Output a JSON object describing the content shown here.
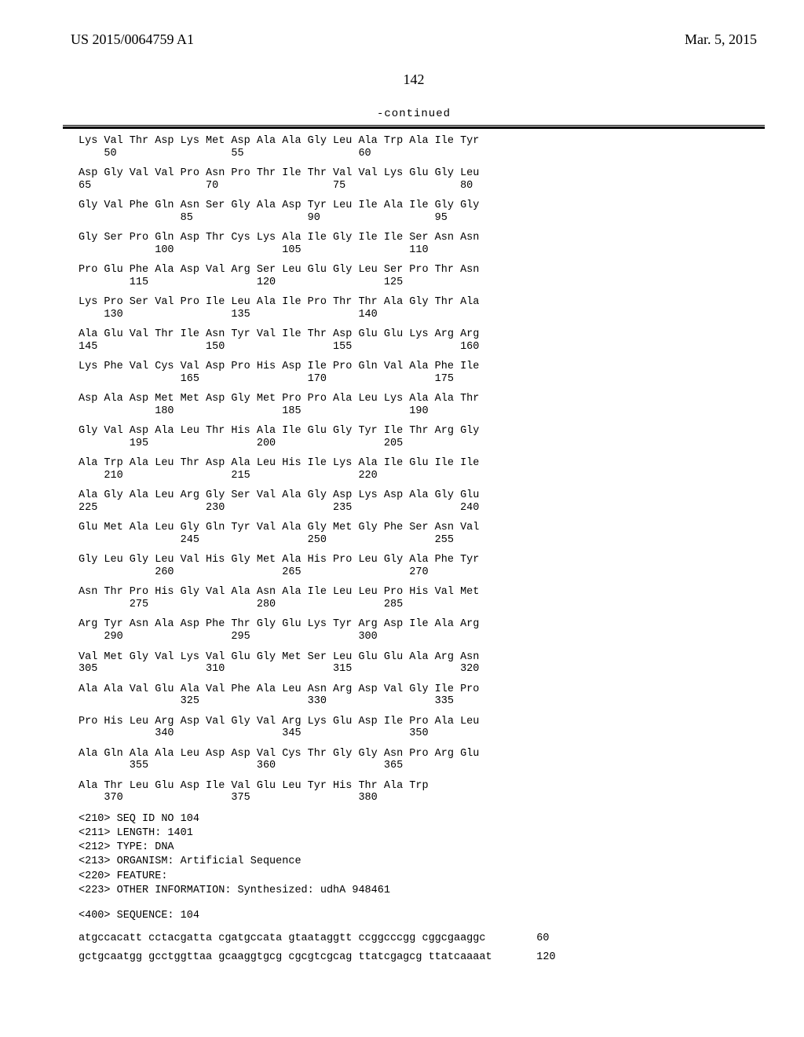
{
  "header": {
    "pubnum": "US 2015/0064759 A1",
    "pubdate": "Mar. 5, 2015"
  },
  "page_number": "142",
  "continued_label": "-continued",
  "seq_rows": [
    {
      "aa": "Lys Val Thr Asp Lys Met Asp Ala Ala Gly Leu Ala Trp Ala Ile Tyr",
      "n": "    50                  55                  60"
    },
    {
      "aa": "Asp Gly Val Val Pro Asn Pro Thr Ile Thr Val Val Lys Glu Gly Leu",
      "n": "65                  70                  75                  80"
    },
    {
      "aa": "Gly Val Phe Gln Asn Ser Gly Ala Asp Tyr Leu Ile Ala Ile Gly Gly",
      "n": "                85                  90                  95"
    },
    {
      "aa": "Gly Ser Pro Gln Asp Thr Cys Lys Ala Ile Gly Ile Ile Ser Asn Asn",
      "n": "            100                 105                 110"
    },
    {
      "aa": "Pro Glu Phe Ala Asp Val Arg Ser Leu Glu Gly Leu Ser Pro Thr Asn",
      "n": "        115                 120                 125"
    },
    {
      "aa": "Lys Pro Ser Val Pro Ile Leu Ala Ile Pro Thr Thr Ala Gly Thr Ala",
      "n": "    130                 135                 140"
    },
    {
      "aa": "Ala Glu Val Thr Ile Asn Tyr Val Ile Thr Asp Glu Glu Lys Arg Arg",
      "n": "145                 150                 155                 160"
    },
    {
      "aa": "Lys Phe Val Cys Val Asp Pro His Asp Ile Pro Gln Val Ala Phe Ile",
      "n": "                165                 170                 175"
    },
    {
      "aa": "Asp Ala Asp Met Met Asp Gly Met Pro Pro Ala Leu Lys Ala Ala Thr",
      "n": "            180                 185                 190"
    },
    {
      "aa": "Gly Val Asp Ala Leu Thr His Ala Ile Glu Gly Tyr Ile Thr Arg Gly",
      "n": "        195                 200                 205"
    },
    {
      "aa": "Ala Trp Ala Leu Thr Asp Ala Leu His Ile Lys Ala Ile Glu Ile Ile",
      "n": "    210                 215                 220"
    },
    {
      "aa": "Ala Gly Ala Leu Arg Gly Ser Val Ala Gly Asp Lys Asp Ala Gly Glu",
      "n": "225                 230                 235                 240"
    },
    {
      "aa": "Glu Met Ala Leu Gly Gln Tyr Val Ala Gly Met Gly Phe Ser Asn Val",
      "n": "                245                 250                 255"
    },
    {
      "aa": "Gly Leu Gly Leu Val His Gly Met Ala His Pro Leu Gly Ala Phe Tyr",
      "n": "            260                 265                 270"
    },
    {
      "aa": "Asn Thr Pro His Gly Val Ala Asn Ala Ile Leu Leu Pro His Val Met",
      "n": "        275                 280                 285"
    },
    {
      "aa": "Arg Tyr Asn Ala Asp Phe Thr Gly Glu Lys Tyr Arg Asp Ile Ala Arg",
      "n": "    290                 295                 300"
    },
    {
      "aa": "Val Met Gly Val Lys Val Glu Gly Met Ser Leu Glu Glu Ala Arg Asn",
      "n": "305                 310                 315                 320"
    },
    {
      "aa": "Ala Ala Val Glu Ala Val Phe Ala Leu Asn Arg Asp Val Gly Ile Pro",
      "n": "                325                 330                 335"
    },
    {
      "aa": "Pro His Leu Arg Asp Val Gly Val Arg Lys Glu Asp Ile Pro Ala Leu",
      "n": "            340                 345                 350"
    },
    {
      "aa": "Ala Gln Ala Ala Leu Asp Asp Val Cys Thr Gly Gly Asn Pro Arg Glu",
      "n": "        355                 360                 365"
    },
    {
      "aa": "Ala Thr Leu Glu Asp Ile Val Glu Leu Tyr His Thr Ala Trp",
      "n": "    370                 375                 380"
    }
  ],
  "metadata": [
    "<210> SEQ ID NO 104",
    "<211> LENGTH: 1401",
    "<212> TYPE: DNA",
    "<213> ORGANISM: Artificial Sequence",
    "<220> FEATURE:",
    "<223> OTHER INFORMATION: Synthesized: udhA 948461"
  ],
  "sequence_header": "<400> SEQUENCE: 104",
  "dna_rows": [
    {
      "seq": "atgccacatt cctacgatta cgatgccata gtaataggtt ccggcccgg cggcgaaggc",
      "pos": "60"
    },
    {
      "seq": "gctgcaatgg gcctggttaa gcaaggtgcg cgcgtcgcag ttatcgagcg ttatcaaaat",
      "pos": "120"
    }
  ]
}
